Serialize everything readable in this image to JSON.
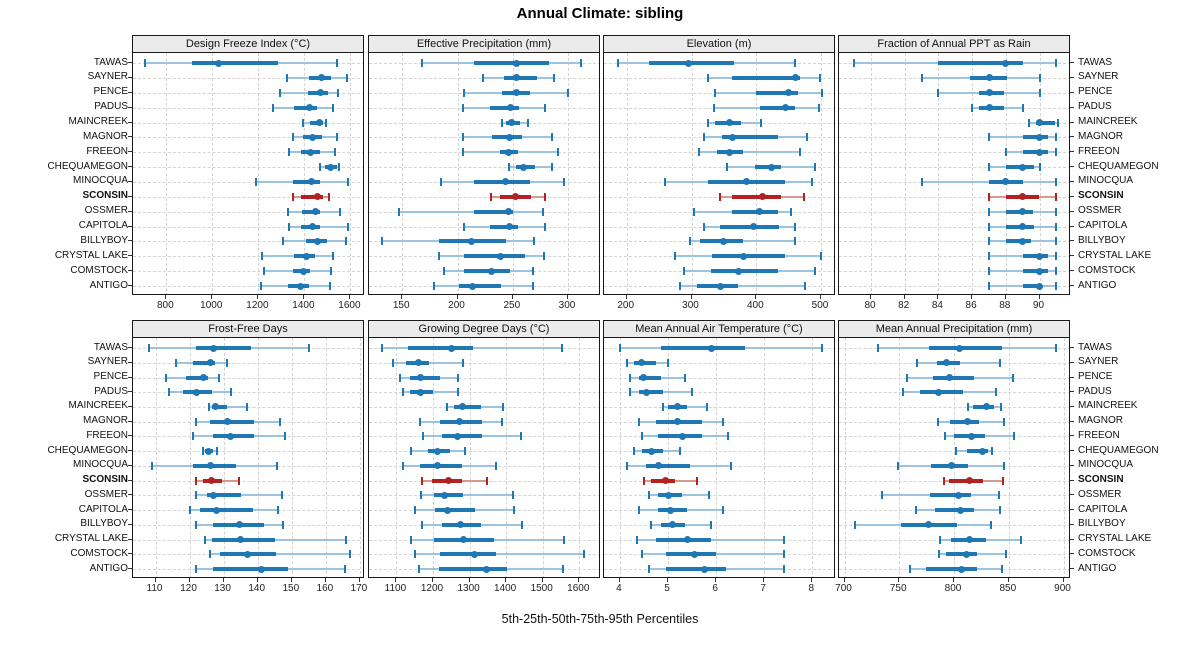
{
  "title": "Annual Climate: sibling",
  "caption": "5th-25th-50th-75th-95th Percentiles",
  "sites": [
    "TAWAS",
    "SAYNER",
    "PENCE",
    "PADUS",
    "MAINCREEK",
    "MAGNOR",
    "FREEON",
    "CHEQUAMEGON",
    "MINOCQUA",
    "SCONSIN",
    "OSSMER",
    "CAPITOLA",
    "BILLYBOY",
    "CRYSTAL LAKE",
    "COMSTOCK",
    "ANTIGO"
  ],
  "highlight_site": "SCONSIN",
  "colors": {
    "main": "#1f77b4",
    "light": "#9cc4de",
    "highlight": "#b22222",
    "highlight_light": "#d49a92",
    "grid": "#d4d4d4",
    "strip_bg": "#ebebeb",
    "border": "#1a1a1a"
  },
  "percentiles": [
    5,
    25,
    50,
    75,
    95
  ],
  "chart_data": [
    {
      "type": "dotplot-percentile",
      "row": 0,
      "col": 0,
      "title": "Design Freeze Index (°C)",
      "ticks": [
        800,
        1000,
        1200,
        1400,
        1600
      ],
      "domain": [
        655,
        1655
      ],
      "values": [
        [
          705,
          910,
          1025,
          1285,
          1540
        ],
        [
          1325,
          1420,
          1475,
          1515,
          1585
        ],
        [
          1295,
          1415,
          1470,
          1505,
          1545
        ],
        [
          1265,
          1355,
          1420,
          1455,
          1525
        ],
        [
          1395,
          1425,
          1465,
          1480,
          1495
        ],
        [
          1350,
          1395,
          1435,
          1475,
          1540
        ],
        [
          1335,
          1385,
          1425,
          1470,
          1535
        ],
        [
          1470,
          1490,
          1515,
          1540,
          1550
        ],
        [
          1190,
          1350,
          1430,
          1470,
          1590
        ],
        [
          1350,
          1385,
          1455,
          1480,
          1505
        ],
        [
          1330,
          1390,
          1450,
          1470,
          1555
        ],
        [
          1335,
          1385,
          1435,
          1470,
          1590
        ],
        [
          1305,
          1405,
          1455,
          1500,
          1580
        ],
        [
          1215,
          1355,
          1410,
          1445,
          1525
        ],
        [
          1225,
          1350,
          1395,
          1425,
          1515
        ],
        [
          1210,
          1330,
          1385,
          1420,
          1510
        ]
      ]
    },
    {
      "type": "dotplot-percentile",
      "row": 0,
      "col": 1,
      "title": "Effective Precipitation (mm)",
      "ticks": [
        150,
        200,
        250,
        300
      ],
      "domain": [
        120,
        328
      ],
      "values": [
        [
          168,
          215,
          253,
          283,
          312
        ],
        [
          223,
          242,
          253,
          272,
          287
        ],
        [
          206,
          240,
          253,
          266,
          300
        ],
        [
          205,
          229,
          248,
          256,
          279
        ],
        [
          240,
          244,
          249,
          257,
          264
        ],
        [
          205,
          231,
          247,
          258,
          285
        ],
        [
          205,
          238,
          246,
          255,
          291
        ],
        [
          247,
          253,
          260,
          270,
          285
        ],
        [
          185,
          215,
          243,
          266,
          296
        ],
        [
          230,
          238,
          252,
          266,
          279
        ],
        [
          147,
          215,
          246,
          250,
          277
        ],
        [
          206,
          229,
          247,
          255,
          279
        ],
        [
          132,
          183,
          213,
          244,
          269
        ],
        [
          183,
          206,
          239,
          261,
          278
        ],
        [
          188,
          206,
          231,
          248,
          268
        ],
        [
          179,
          201,
          214,
          239,
          268
        ]
      ]
    },
    {
      "type": "dotplot-percentile",
      "row": 0,
      "col": 2,
      "title": "Elevation (m)",
      "ticks": [
        200,
        300,
        400,
        500
      ],
      "domain": [
        165,
        520
      ],
      "values": [
        [
          187,
          234,
          295,
          366,
          460
        ],
        [
          325,
          362,
          461,
          467,
          498
        ],
        [
          337,
          400,
          449,
          465,
          501
        ],
        [
          335,
          405,
          445,
          460,
          497
        ],
        [
          326,
          336,
          359,
          376,
          408
        ],
        [
          319,
          347,
          364,
          434,
          478
        ],
        [
          312,
          339,
          359,
          379,
          467
        ],
        [
          355,
          398,
          423,
          438,
          491
        ],
        [
          259,
          325,
          385,
          445,
          486
        ],
        [
          344,
          362,
          410,
          438,
          473
        ],
        [
          304,
          362,
          405,
          433,
          454
        ],
        [
          320,
          344,
          395,
          435,
          460
        ],
        [
          298,
          313,
          350,
          379,
          460
        ],
        [
          275,
          332,
          381,
          445,
          500
        ],
        [
          288,
          330,
          372,
          434,
          491
        ],
        [
          282,
          309,
          344,
          372,
          475
        ]
      ]
    },
    {
      "type": "dotplot-percentile",
      "row": 0,
      "col": 3,
      "title": "Fraction of Annual PPT as Rain",
      "ticks": [
        80,
        82,
        84,
        86,
        88,
        90
      ],
      "domain": [
        78.1,
        91.75
      ],
      "values": [
        [
          79,
          84,
          88,
          89,
          91
        ],
        [
          83,
          85.9,
          87,
          88.1,
          90
        ],
        [
          84,
          86.4,
          87,
          87.9,
          90
        ],
        [
          86,
          86.4,
          87,
          87.9,
          89
        ],
        [
          89.4,
          89.8,
          90,
          90.9,
          91.1
        ],
        [
          87,
          89,
          90,
          90.5,
          91
        ],
        [
          88,
          89,
          90,
          90.5,
          91
        ],
        [
          87,
          88,
          89,
          89.7,
          90
        ],
        [
          83,
          87,
          88,
          89,
          91
        ],
        [
          87,
          88,
          89,
          90,
          91
        ],
        [
          87,
          88,
          89,
          89.6,
          91
        ],
        [
          87,
          88,
          89,
          89.7,
          91
        ],
        [
          87,
          88,
          89,
          89.5,
          91
        ],
        [
          87,
          89,
          90,
          90.5,
          91
        ],
        [
          87,
          89,
          90,
          90.5,
          91
        ],
        [
          87,
          89,
          90,
          90.1,
          91
        ]
      ]
    },
    {
      "type": "dotplot-percentile",
      "row": 1,
      "col": 0,
      "title": "Frost-Free Days",
      "ticks": [
        110,
        120,
        130,
        140,
        150,
        160,
        170
      ],
      "domain": [
        103.4,
        170.9
      ],
      "values": [
        [
          108,
          122,
          127,
          138,
          155
        ],
        [
          116,
          121,
          126,
          127.5,
          131
        ],
        [
          113,
          119,
          124,
          125.5,
          128.5
        ],
        [
          114,
          118,
          122,
          126.5,
          132
        ],
        [
          125.8,
          126.6,
          127.6,
          131,
          136.7
        ],
        [
          122,
          126,
          131,
          139,
          146.5
        ],
        [
          121,
          127,
          132,
          139,
          148
        ],
        [
          124,
          124.5,
          125.5,
          127,
          128
        ],
        [
          109,
          121,
          126,
          133.5,
          145.5
        ],
        [
          122,
          124,
          126.5,
          129.5,
          134.5
        ],
        [
          122,
          125,
          127,
          135,
          147
        ],
        [
          120,
          123,
          128,
          138.5,
          146
        ],
        [
          122,
          127,
          134.5,
          142,
          147.5
        ],
        [
          124.5,
          126.6,
          135,
          145,
          166
        ],
        [
          126,
          129,
          137,
          145.5,
          167
        ],
        [
          122,
          127,
          141,
          149,
          165.5
        ]
      ]
    },
    {
      "type": "dotplot-percentile",
      "row": 1,
      "col": 1,
      "title": "Growing Degree Days (°C)",
      "ticks": [
        1100,
        1200,
        1300,
        1400,
        1500,
        1600
      ],
      "domain": [
        1025,
        1654
      ],
      "values": [
        [
          1061,
          1132,
          1251,
          1309,
          1552
        ],
        [
          1090,
          1127,
          1161,
          1189,
          1281
        ],
        [
          1110,
          1136,
          1165,
          1219,
          1269
        ],
        [
          1119,
          1136,
          1167,
          1200,
          1267
        ],
        [
          1238,
          1258,
          1281,
          1331,
          1391
        ],
        [
          1163,
          1220,
          1271,
          1334,
          1389
        ],
        [
          1172,
          1225,
          1266,
          1333,
          1440
        ],
        [
          1141,
          1185,
          1213,
          1247,
          1287
        ],
        [
          1119,
          1165,
          1213,
          1280,
          1373
        ],
        [
          1170,
          1198,
          1241,
          1278,
          1347
        ],
        [
          1167,
          1203,
          1231,
          1282,
          1419
        ],
        [
          1152,
          1205,
          1240,
          1316,
          1422
        ],
        [
          1170,
          1225,
          1276,
          1331,
          1442
        ],
        [
          1141,
          1203,
          1282,
          1366,
          1557
        ],
        [
          1150,
          1219,
          1313,
          1373,
          1614
        ],
        [
          1161,
          1216,
          1347,
          1402,
          1555
        ]
      ]
    },
    {
      "type": "dotplot-percentile",
      "row": 1,
      "col": 2,
      "title": "Mean Annual Air Temperature (°C)",
      "ticks": [
        4,
        5,
        6,
        7,
        8
      ],
      "domain": [
        3.67,
        8.45
      ],
      "values": [
        [
          4.0,
          4.85,
          5.9,
          6.6,
          8.2
        ],
        [
          4.15,
          4.3,
          4.45,
          4.75,
          5.0
        ],
        [
          4.2,
          4.4,
          4.5,
          4.85,
          5.35
        ],
        [
          4.2,
          4.4,
          4.55,
          4.9,
          5.5
        ],
        [
          4.9,
          5.0,
          5.2,
          5.4,
          5.8
        ],
        [
          4.4,
          4.75,
          5.2,
          5.7,
          6.15
        ],
        [
          4.45,
          4.8,
          5.3,
          5.7,
          6.25
        ],
        [
          4.3,
          4.45,
          4.65,
          4.9,
          5.25
        ],
        [
          4.15,
          4.55,
          4.8,
          5.45,
          6.3
        ],
        [
          4.5,
          4.65,
          4.95,
          5.15,
          5.6
        ],
        [
          4.6,
          4.8,
          5.0,
          5.3,
          5.85
        ],
        [
          4.4,
          4.8,
          5.05,
          5.4,
          6.15
        ],
        [
          4.65,
          4.85,
          5.1,
          5.35,
          5.9
        ],
        [
          4.35,
          4.75,
          5.4,
          5.9,
          7.4
        ],
        [
          4.45,
          4.95,
          5.55,
          6.0,
          7.4
        ],
        [
          4.6,
          4.95,
          5.75,
          6.2,
          7.4
        ]
      ]
    },
    {
      "type": "dotplot-percentile",
      "row": 1,
      "col": 3,
      "title": "Mean Annual Precipitation (mm)",
      "ticks": [
        700,
        750,
        800,
        850,
        900
      ],
      "domain": [
        695,
        905
      ],
      "values": [
        [
          731,
          777,
          805,
          844,
          893
        ],
        [
          766,
          784,
          793,
          805,
          842
        ],
        [
          757,
          781,
          796,
          818,
          854
        ],
        [
          753,
          769,
          786,
          808,
          838
        ],
        [
          813,
          817,
          830,
          837,
          843
        ],
        [
          785,
          796,
          812,
          823,
          846
        ],
        [
          792,
          800,
          816,
          828,
          855
        ],
        [
          802,
          812,
          826,
          831,
          835
        ],
        [
          749,
          779,
          798,
          813,
          846
        ],
        [
          791,
          795,
          814,
          826,
          845
        ],
        [
          734,
          778,
          804,
          816,
          841
        ],
        [
          765,
          783,
          806,
          818,
          842
        ],
        [
          710,
          752,
          777,
          803,
          834
        ],
        [
          787,
          797,
          814,
          829,
          861
        ],
        [
          786,
          793,
          811,
          821,
          847
        ],
        [
          760,
          774,
          807,
          821,
          844
        ]
      ]
    }
  ]
}
